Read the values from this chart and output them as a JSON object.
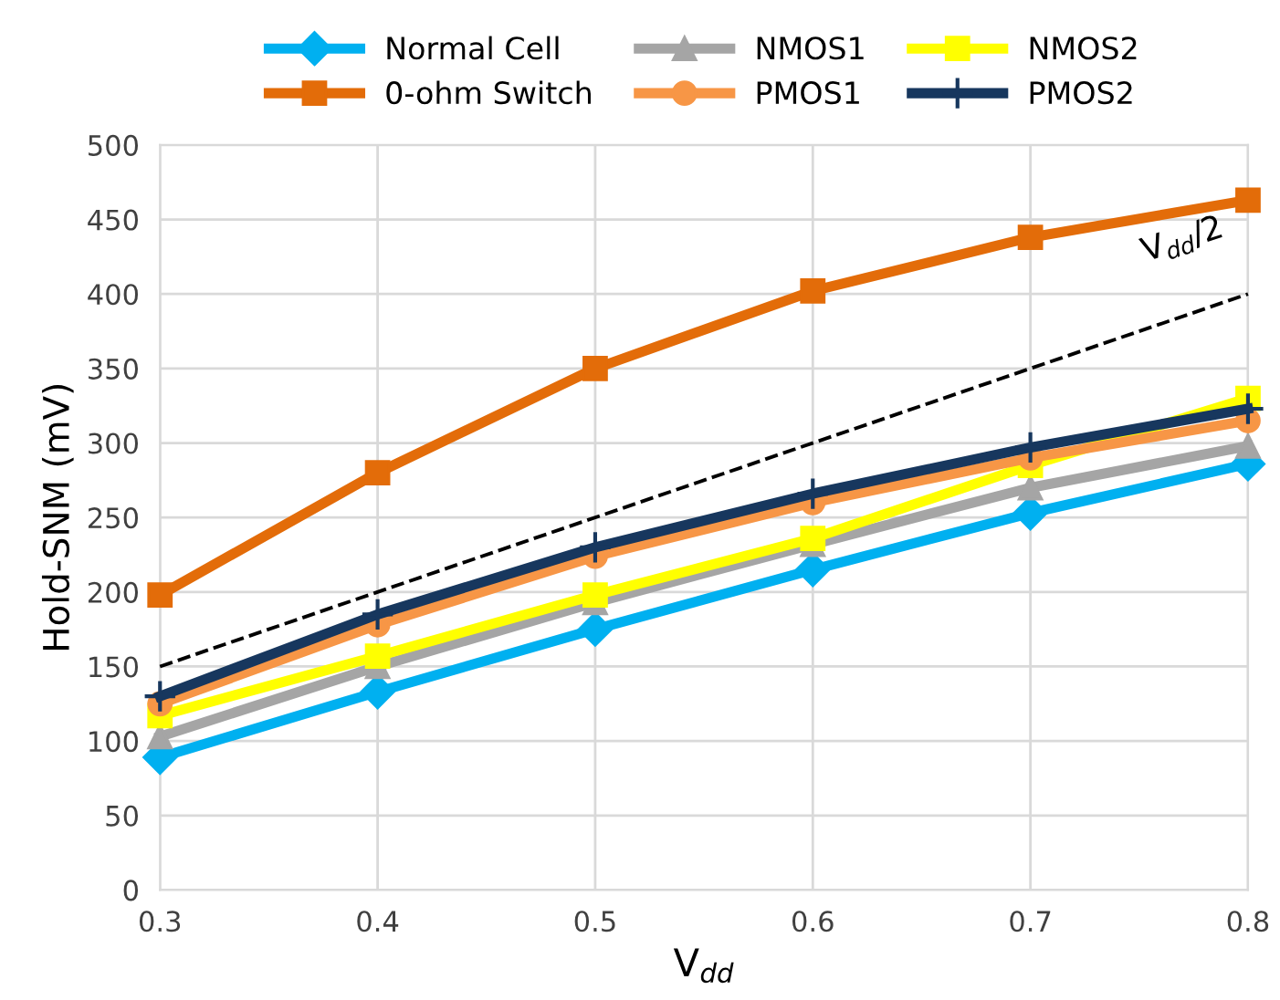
{
  "chart_data": {
    "type": "line",
    "xlabel": "V$_{dd}$",
    "ylabel": "Hold-SNM (mV)",
    "x": [
      0.3,
      0.4,
      0.5,
      0.6,
      0.7,
      0.8
    ],
    "xlim": [
      0.3,
      0.8
    ],
    "xticks": [
      0.3,
      0.4,
      0.5,
      0.6,
      0.7,
      0.8
    ],
    "ylim": [
      0,
      500
    ],
    "yticks": [
      0,
      50,
      100,
      150,
      200,
      250,
      300,
      350,
      400,
      450,
      500
    ],
    "grid": true,
    "legend": "top",
    "series": [
      {
        "name": "Normal Cell",
        "color": "#00b0f0",
        "marker": "diamond",
        "values": [
          89,
          133,
          175,
          215,
          253,
          286
        ]
      },
      {
        "name": "NMOS1",
        "color": "#a5a5a5",
        "marker": "triangle",
        "values": [
          103,
          150,
          193,
          232,
          270,
          298
        ]
      },
      {
        "name": "NMOS2",
        "color": "#ffff00",
        "marker": "square",
        "values": [
          117,
          157,
          198,
          236,
          285,
          330
        ]
      },
      {
        "name": "0-ohm Switch",
        "color": "#e36c09",
        "marker": "square",
        "values": [
          198,
          280,
          350,
          402,
          438,
          463
        ]
      },
      {
        "name": "PMOS1",
        "color": "#f79646",
        "marker": "circle",
        "values": [
          125,
          178,
          224,
          260,
          290,
          315
        ]
      },
      {
        "name": "PMOS2",
        "color": "#17375e",
        "marker": "cross",
        "values": [
          130,
          185,
          230,
          266,
          297,
          323
        ]
      },
      {
        "color": "#000000",
        "marker": "none",
        "line_style": "dashed",
        "x": [
          0.3,
          0.8
        ],
        "values": [
          150,
          400
        ]
      }
    ],
    "annotations": [
      {
        "text": "V$_{dd}$/2",
        "x": 0.8,
        "y": 400
      }
    ]
  }
}
